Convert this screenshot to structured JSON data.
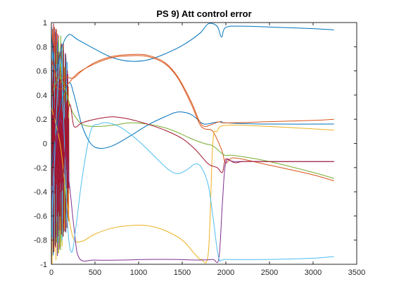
{
  "chart_data": {
    "type": "line",
    "title": "PS 9) Att control error",
    "xlabel": "",
    "ylabel": "",
    "xlim": [
      0,
      3500
    ],
    "ylim": [
      -1,
      1
    ],
    "xticks": [
      0,
      500,
      1000,
      1500,
      2000,
      2500,
      3000,
      3500
    ],
    "yticks": [
      -1,
      -0.8,
      -0.6,
      -0.4,
      -0.2,
      0,
      0.2,
      0.4,
      0.6,
      0.8,
      1
    ],
    "xtick_labels": [
      "0",
      "500",
      "1000",
      "1500",
      "2000",
      "2500",
      "3000",
      "3500"
    ],
    "ytick_labels": [
      "-1",
      "-0.8",
      "-0.6",
      "-0.4",
      "-0.2",
      "0",
      "0.2",
      "0.4",
      "0.6",
      "0.8",
      "1"
    ],
    "grid": false,
    "legend": "none",
    "series": [
      {
        "color": "#0072BD",
        "points": [
          [
            0,
            0.9
          ],
          [
            50,
            0.6
          ],
          [
            120,
            0.8
          ],
          [
            200,
            0.9
          ],
          [
            300,
            0.86
          ],
          [
            500,
            0.78
          ],
          [
            700,
            0.71
          ],
          [
            900,
            0.68
          ],
          [
            1100,
            0.69
          ],
          [
            1300,
            0.74
          ],
          [
            1500,
            0.81
          ],
          [
            1700,
            0.91
          ],
          [
            1800,
            0.99
          ],
          [
            1900,
            0.97
          ],
          [
            1950,
            0.88
          ],
          [
            2000,
            0.96
          ],
          [
            2200,
            0.97
          ],
          [
            2600,
            0.96
          ],
          [
            3000,
            0.95
          ],
          [
            3240,
            0.94
          ]
        ]
      },
      {
        "color": "#0072BD",
        "points": [
          [
            0,
            -0.2
          ],
          [
            100,
            0.3
          ],
          [
            200,
            0.5
          ],
          [
            260,
            0.4
          ],
          [
            350,
            0.15
          ],
          [
            450,
            0.0
          ],
          [
            550,
            -0.04
          ],
          [
            700,
            -0.02
          ],
          [
            900,
            0.06
          ],
          [
            1100,
            0.15
          ],
          [
            1300,
            0.22
          ],
          [
            1450,
            0.26
          ],
          [
            1600,
            0.24
          ],
          [
            1720,
            0.17
          ],
          [
            1780,
            0.16
          ],
          [
            1850,
            0.17
          ],
          [
            1950,
            0.18
          ],
          [
            2000,
            0.17
          ],
          [
            2500,
            0.16
          ],
          [
            3240,
            0.16
          ]
        ]
      },
      {
        "color": "#D95319",
        "points": [
          [
            0,
            0.7
          ],
          [
            80,
            0.5
          ],
          [
            150,
            0.55
          ],
          [
            250,
            0.54
          ],
          [
            350,
            0.6
          ],
          [
            500,
            0.67
          ],
          [
            700,
            0.72
          ],
          [
            900,
            0.735
          ],
          [
            1100,
            0.73
          ],
          [
            1300,
            0.67
          ],
          [
            1450,
            0.55
          ],
          [
            1600,
            0.35
          ],
          [
            1700,
            0.18
          ],
          [
            1760,
            0.14
          ],
          [
            1850,
            0.16
          ],
          [
            1930,
            0.18
          ],
          [
            2000,
            0.17
          ],
          [
            2500,
            0.18
          ],
          [
            3000,
            0.19
          ],
          [
            3240,
            0.2
          ]
        ]
      },
      {
        "color": "#D95319",
        "points": [
          [
            0,
            0.5
          ],
          [
            100,
            0.45
          ],
          [
            200,
            0.5
          ],
          [
            300,
            0.58
          ],
          [
            500,
            0.66
          ],
          [
            700,
            0.71
          ],
          [
            900,
            0.725
          ],
          [
            1100,
            0.72
          ],
          [
            1300,
            0.66
          ],
          [
            1450,
            0.54
          ],
          [
            1600,
            0.33
          ],
          [
            1700,
            0.16
          ],
          [
            1760,
            0.12
          ],
          [
            1850,
            0.1
          ],
          [
            1950,
            -0.05
          ],
          [
            2000,
            -0.16
          ],
          [
            2100,
            -0.12
          ],
          [
            2500,
            -0.18
          ],
          [
            3000,
            -0.26
          ],
          [
            3240,
            -0.31
          ]
        ]
      },
      {
        "color": "#EDB120",
        "points": [
          [
            0,
            0.3
          ],
          [
            100,
            0.0
          ],
          [
            180,
            -0.5
          ],
          [
            250,
            -0.78
          ],
          [
            350,
            -0.81
          ],
          [
            500,
            -0.75
          ],
          [
            700,
            -0.7
          ],
          [
            900,
            -0.68
          ],
          [
            1100,
            -0.68
          ],
          [
            1300,
            -0.72
          ],
          [
            1500,
            -0.8
          ],
          [
            1650,
            -0.92
          ],
          [
            1720,
            -0.96
          ],
          [
            1800,
            -0.9
          ],
          [
            1850,
            0.0
          ],
          [
            1900,
            0.1
          ],
          [
            2000,
            0.15
          ],
          [
            2500,
            0.14
          ],
          [
            3000,
            0.12
          ],
          [
            3240,
            0.11
          ]
        ]
      },
      {
        "color": "#7E2F8E",
        "points": [
          [
            0,
            -0.5
          ],
          [
            100,
            0.2
          ],
          [
            200,
            -0.3
          ],
          [
            260,
            -0.7
          ],
          [
            320,
            -0.95
          ],
          [
            500,
            -0.965
          ],
          [
            800,
            -0.965
          ],
          [
            1100,
            -0.96
          ],
          [
            1400,
            -0.96
          ],
          [
            1700,
            -0.965
          ],
          [
            1850,
            -0.96
          ],
          [
            1920,
            -0.95
          ],
          [
            1960,
            -0.5
          ],
          [
            2000,
            -0.16
          ],
          [
            2100,
            -0.15
          ],
          [
            2500,
            -0.15
          ],
          [
            3000,
            -0.15
          ],
          [
            3240,
            -0.15
          ]
        ]
      },
      {
        "color": "#77AC30",
        "points": [
          [
            0,
            0.4
          ],
          [
            100,
            0.55
          ],
          [
            200,
            0.35
          ],
          [
            250,
            0.25
          ],
          [
            350,
            0.16
          ],
          [
            500,
            0.14
          ],
          [
            700,
            0.15
          ],
          [
            900,
            0.17
          ],
          [
            1100,
            0.16
          ],
          [
            1300,
            0.13
          ],
          [
            1450,
            0.09
          ],
          [
            1600,
            0.04
          ],
          [
            1750,
            0.0
          ],
          [
            1850,
            -0.02
          ],
          [
            1950,
            -0.08
          ],
          [
            2000,
            -0.1
          ],
          [
            2100,
            -0.1
          ],
          [
            2500,
            -0.15
          ],
          [
            3000,
            -0.24
          ],
          [
            3240,
            -0.29
          ]
        ]
      },
      {
        "color": "#4DBEEE",
        "points": [
          [
            0,
            -0.8
          ],
          [
            100,
            0.7
          ],
          [
            180,
            -0.6
          ],
          [
            230,
            -0.9
          ],
          [
            280,
            -0.7
          ],
          [
            350,
            -0.3
          ],
          [
            450,
            0.1
          ],
          [
            550,
            0.16
          ],
          [
            650,
            0.17
          ],
          [
            800,
            0.13
          ],
          [
            1000,
            0.02
          ],
          [
            1200,
            -0.12
          ],
          [
            1350,
            -0.22
          ],
          [
            1450,
            -0.25
          ],
          [
            1550,
            -0.22
          ],
          [
            1650,
            -0.17
          ],
          [
            1720,
            -0.2
          ],
          [
            1800,
            -0.35
          ],
          [
            1860,
            -0.65
          ],
          [
            1920,
            -0.95
          ],
          [
            2000,
            -0.96
          ],
          [
            2500,
            -0.96
          ],
          [
            3000,
            -0.95
          ],
          [
            3240,
            -0.935
          ]
        ]
      },
      {
        "color": "#A2142F",
        "points": [
          [
            0,
            0.6
          ],
          [
            100,
            -0.4
          ],
          [
            200,
            0.3
          ],
          [
            260,
            0.14
          ],
          [
            350,
            0.17
          ],
          [
            500,
            0.2
          ],
          [
            700,
            0.22
          ],
          [
            900,
            0.2
          ],
          [
            1100,
            0.16
          ],
          [
            1300,
            0.11
          ],
          [
            1500,
            0.04
          ],
          [
            1650,
            -0.05
          ],
          [
            1800,
            -0.17
          ],
          [
            1900,
            -0.2
          ],
          [
            1960,
            -0.24
          ],
          [
            2000,
            -0.13
          ],
          [
            2100,
            -0.16
          ],
          [
            2200,
            -0.15
          ],
          [
            2500,
            -0.15
          ],
          [
            3240,
            -0.15
          ]
        ]
      }
    ],
    "transient": {
      "x_range": [
        0,
        200
      ],
      "colors": [
        "#0072BD",
        "#D95319",
        "#EDB120",
        "#7E2F8E",
        "#77AC30",
        "#4DBEEE",
        "#A2142F"
      ]
    }
  }
}
